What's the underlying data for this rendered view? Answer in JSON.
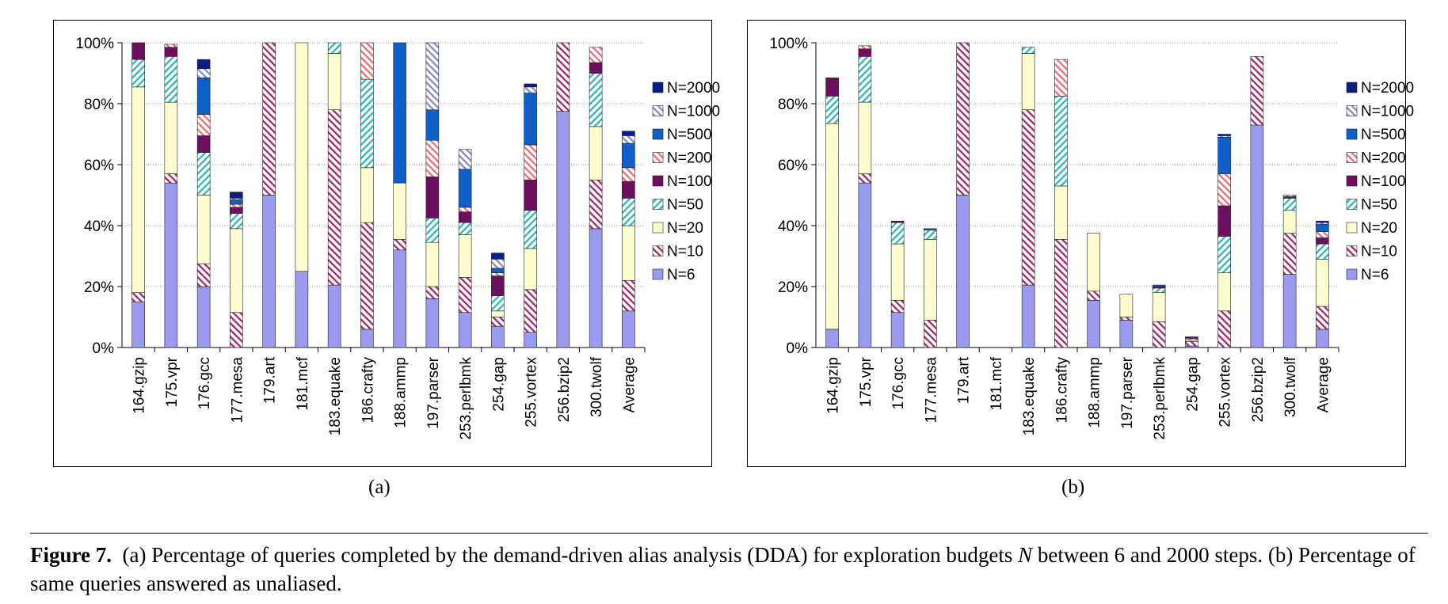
{
  "colors": {
    "N=6": "#9a9af0",
    "N=10": "#a0306a",
    "N=20": "#fefdd0",
    "N=50": "#37b8b4",
    "N=100": "#6b0f5e",
    "N=200": "#e8727a",
    "N=500": "#0e60c8",
    "N=1000": "#8b8bc7",
    "N=2000": "#0a1f86"
  },
  "chart_data": [
    {
      "id": "a",
      "type": "bar",
      "stacked": true,
      "panel_label": "(a)",
      "ylim": [
        0,
        100
      ],
      "yticks": [
        "0%",
        "20%",
        "40%",
        "60%",
        "80%",
        "100%"
      ],
      "grid": true,
      "legend_position": "right",
      "categories": [
        "164.gzip",
        "175.vpr",
        "176.gcc",
        "177.mesa",
        "179.art",
        "181.mcf",
        "183.equake",
        "186.crafty",
        "188.ammp",
        "197.parser",
        "253.perlbmk",
        "254.gap",
        "255.vortex",
        "256.bzip2",
        "300.twolf",
        "Average"
      ],
      "series": [
        {
          "name": "N=6",
          "values": [
            15,
            54,
            20,
            0,
            50,
            25,
            20.5,
            6,
            32,
            16,
            11.5,
            7,
            5,
            77.5,
            39,
            12
          ]
        },
        {
          "name": "N=10",
          "values": [
            3,
            3,
            7.5,
            11.5,
            50,
            0,
            57.5,
            35,
            3.5,
            4,
            11.5,
            3,
            14,
            22.5,
            16,
            10
          ]
        },
        {
          "name": "N=20",
          "values": [
            67.5,
            23.5,
            22.5,
            27.5,
            0,
            75,
            18.5,
            18,
            18.5,
            14.5,
            14,
            2,
            13.5,
            0,
            17.5,
            18
          ]
        },
        {
          "name": "N=50",
          "values": [
            9,
            15,
            14,
            5,
            0,
            0,
            3.5,
            29,
            0,
            8,
            4,
            5,
            12.5,
            0,
            17.5,
            9
          ]
        },
        {
          "name": "N=100",
          "values": [
            5.5,
            3,
            5.5,
            2,
            0,
            0,
            0,
            0,
            0,
            13.5,
            3.5,
            6.5,
            10,
            0,
            3.5,
            5.5
          ]
        },
        {
          "name": "N=200",
          "values": [
            0,
            1,
            7,
            1,
            0,
            0,
            0,
            12,
            0,
            12,
            1.5,
            1,
            11.5,
            0,
            5,
            4.5
          ]
        },
        {
          "name": "N=500",
          "values": [
            0,
            0,
            12,
            1.5,
            0,
            0,
            0,
            0,
            46,
            10,
            12.5,
            1.5,
            17,
            0,
            0,
            8
          ]
        },
        {
          "name": "N=1000",
          "values": [
            0,
            0,
            3,
            0.5,
            0,
            0,
            0,
            0,
            0,
            22,
            6.5,
            3,
            2,
            0,
            0,
            2.5
          ]
        },
        {
          "name": "N=2000",
          "values": [
            0,
            0,
            3,
            2,
            0,
            0,
            0,
            0,
            0,
            0,
            0,
            2,
            1,
            0,
            0,
            1.5
          ]
        }
      ]
    },
    {
      "id": "b",
      "type": "bar",
      "stacked": true,
      "panel_label": "(b)",
      "ylim": [
        0,
        100
      ],
      "yticks": [
        "0%",
        "20%",
        "40%",
        "60%",
        "80%",
        "100%"
      ],
      "grid": true,
      "legend_position": "right",
      "categories": [
        "164.gzip",
        "175.vpr",
        "176.gcc",
        "177.mesa",
        "179.art",
        "181.mcf",
        "183.equake",
        "186.crafty",
        "188.ammp",
        "197.parser",
        "253.perlbmk",
        "254.gap",
        "255.vortex",
        "256.bzip2",
        "300.twolf",
        "Average"
      ],
      "series": [
        {
          "name": "N=6",
          "values": [
            6,
            54,
            11.5,
            0,
            50,
            0,
            20.5,
            0,
            15.5,
            9,
            0,
            0.5,
            0,
            73,
            24,
            6
          ]
        },
        {
          "name": "N=10",
          "values": [
            0,
            3,
            4,
            9,
            50,
            0,
            57.5,
            35.5,
            3,
            1,
            8.5,
            1.5,
            12,
            22.5,
            13.5,
            7.5
          ]
        },
        {
          "name": "N=20",
          "values": [
            67.5,
            23.5,
            18.5,
            26.5,
            0,
            0,
            18.5,
            17.5,
            19,
            7.5,
            9.5,
            0.5,
            12.5,
            0,
            7.5,
            15.5
          ]
        },
        {
          "name": "N=50",
          "values": [
            9,
            15,
            7,
            3,
            0,
            0,
            2,
            29.5,
            0,
            0,
            1.5,
            0.5,
            12,
            0,
            4,
            5
          ]
        },
        {
          "name": "N=100",
          "values": [
            6,
            2.5,
            0.5,
            0,
            0,
            0,
            0,
            0,
            0,
            0,
            0.5,
            0.5,
            10,
            0,
            0.5,
            2
          ]
        },
        {
          "name": "N=200",
          "values": [
            0,
            1,
            0,
            0,
            0,
            0,
            0,
            12,
            0,
            0,
            0,
            0,
            10.5,
            0,
            0,
            2
          ]
        },
        {
          "name": "N=500",
          "values": [
            0,
            0,
            0,
            0.5,
            0,
            0,
            0,
            0,
            0,
            0,
            0.5,
            0,
            12,
            0,
            0,
            2.5
          ]
        },
        {
          "name": "N=1000",
          "values": [
            0,
            0,
            0,
            0,
            0,
            0,
            0,
            0,
            0,
            0,
            0,
            0,
            0.5,
            0,
            0.5,
            0.5
          ]
        },
        {
          "name": "N=2000",
          "values": [
            0,
            0,
            0,
            0,
            0,
            0,
            0,
            0,
            0,
            0,
            0,
            0,
            0.5,
            0,
            0,
            0.5
          ]
        }
      ]
    }
  ],
  "caption": {
    "label": "Figure 7.",
    "text_part1": "(a) Percentage of queries completed by the demand-driven alias analysis (DDA) for exploration budgets",
    "variable": "N",
    "text_part2": "between 6 and 2000 steps. (b) Percentage of same queries answered as unaliased."
  }
}
